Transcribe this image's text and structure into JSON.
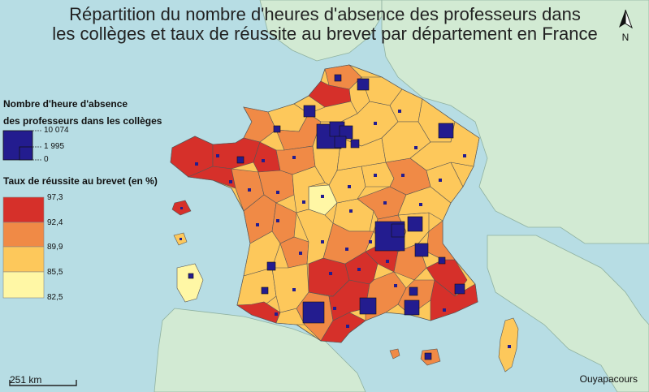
{
  "title_line1": "Répartition du nombre d'heures d'absence des professeurs dans",
  "title_line2": "les collèges et taux de réussite au brevet par département en France",
  "absence_legend": {
    "title_line1": "Nombre d'heure d'absence",
    "title_line2": "des professeurs dans les collèges",
    "values": [
      "10 074",
      "1 995",
      "0"
    ]
  },
  "rate_legend": {
    "title": "Taux de réussite au brevet (en %)",
    "breaks": [
      "97,3",
      "92,4",
      "89,9",
      "85,5",
      "82,5"
    ],
    "colors": [
      "#d6302a",
      "#f08a46",
      "#fdc85b",
      "#fff7a5"
    ]
  },
  "scale_label": "251 km",
  "credit": "Ouyapacours",
  "north_label": "N",
  "colors": {
    "sea": "#b7dde4",
    "neighbor_land": "#d2ead3",
    "symbol": "#231c8f"
  }
}
